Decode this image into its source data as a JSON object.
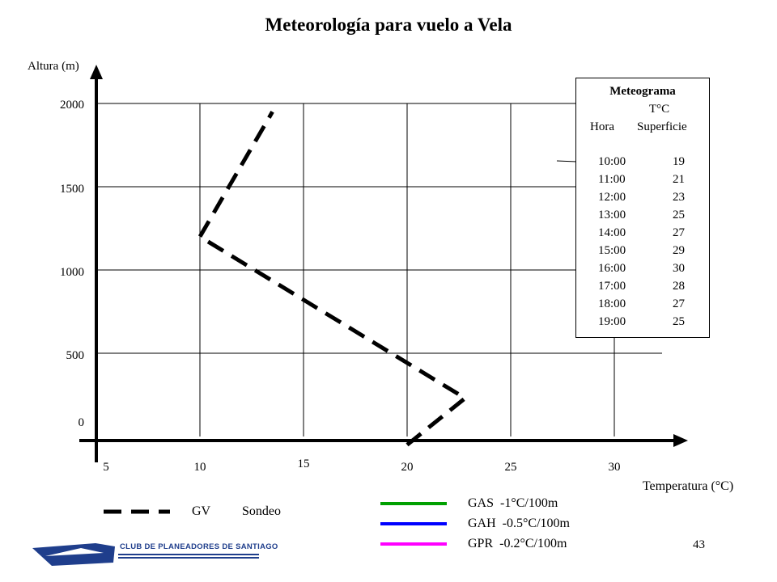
{
  "title": "Meteorología para vuelo a Vela",
  "page_number": "43",
  "logo": {
    "text": "CLUB DE PLANEADORES DE SANTIAGO",
    "color": "#1f3e8c"
  },
  "meteograma": {
    "title": "Meteograma",
    "unit_header": "T°C",
    "col_hora": "Hora",
    "col_superficie": "Superficie",
    "rows": [
      {
        "hora": "10:00",
        "temp": "19"
      },
      {
        "hora": "11:00",
        "temp": "21"
      },
      {
        "hora": "12:00",
        "temp": "23"
      },
      {
        "hora": "13:00",
        "temp": "25"
      },
      {
        "hora": "14:00",
        "temp": "27"
      },
      {
        "hora": "15:00",
        "temp": "29"
      },
      {
        "hora": "16:00",
        "temp": "30"
      },
      {
        "hora": "17:00",
        "temp": "28"
      },
      {
        "hora": "18:00",
        "temp": "27"
      },
      {
        "hora": "19:00",
        "temp": "25"
      }
    ]
  },
  "legend": {
    "gv_label": "GV",
    "sondeo_label": "Sondeo",
    "gradients": [
      {
        "label": "GAS  -1°C/100m",
        "color": "#00a000"
      },
      {
        "label": "GAH  -0.5°C/100m",
        "color": "#0000ff"
      },
      {
        "label": "GPR  -0.2°C/100m",
        "color": "#ff00ff"
      }
    ]
  },
  "chart_data": {
    "type": "line",
    "xlabel": "Temperatura (°C)",
    "ylabel": "Altura (m)",
    "x_ticks": [
      "5",
      "10",
      "15",
      "20",
      "25",
      "30"
    ],
    "y_ticks": [
      "0",
      "500",
      "1000",
      "1500",
      "2000"
    ],
    "xlim": [
      5,
      32
    ],
    "ylim": [
      -50,
      2000
    ],
    "grid": true,
    "series": [
      {
        "name": "Sondeo",
        "style": "dashed",
        "color": "#000000",
        "points": [
          {
            "x": 20,
            "y": -50
          },
          {
            "x": 22.8,
            "y": 230
          },
          {
            "x": 10,
            "y": 1200
          },
          {
            "x": 13.5,
            "y": 1950
          }
        ]
      }
    ]
  }
}
